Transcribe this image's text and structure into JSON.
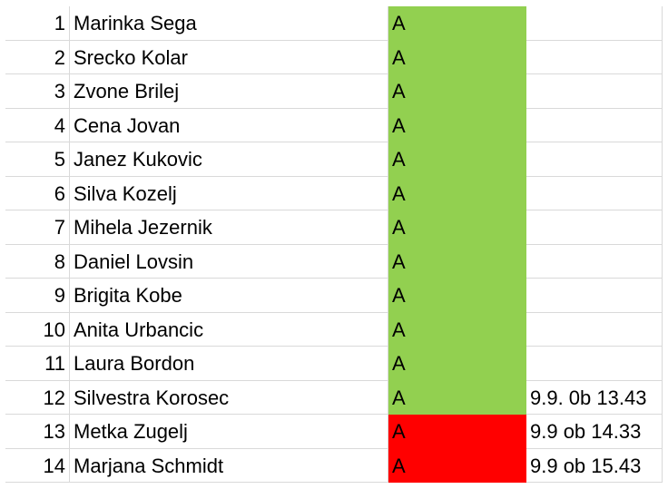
{
  "table": {
    "rows": [
      {
        "number": 1,
        "name": "Marinka Sega",
        "status": "A",
        "color": "#92d050"
      },
      {
        "number": 2,
        "name": "Srecko Kolar",
        "status": "A",
        "color": "#92d050"
      },
      {
        "number": 3,
        "name": "Zvone Brilej",
        "status": "A",
        "color": "#92d050"
      },
      {
        "number": 4,
        "name": "Cena Jovan",
        "status": "A",
        "color": "#92d050"
      },
      {
        "number": 5,
        "name": "Janez Kukovic",
        "status": "A",
        "color": "#92d050"
      },
      {
        "number": 6,
        "name": "Silva Kozelj",
        "status": "A",
        "color": "#92d050"
      },
      {
        "number": 7,
        "name": "Mihela Jezernik",
        "status": "A",
        "color": "#92d050"
      },
      {
        "number": 8,
        "name": "Daniel Lovsin",
        "status": "A",
        "color": "#92d050"
      },
      {
        "number": 9,
        "name": "Brigita Kobe",
        "status": "A",
        "color": "#92d050"
      },
      {
        "number": 10,
        "name": "Anita Urbancic",
        "status": "A",
        "color": "#92d050"
      },
      {
        "number": 11,
        "name": "Laura Bordon",
        "status": "A",
        "color": "#92d050"
      },
      {
        "number": 12,
        "name": "Silvestra Korosec",
        "status": "A",
        "color": "#92d050",
        "note": "9.9. 0b 13.43"
      },
      {
        "number": 13,
        "name": "Metka Zugelj",
        "status": "A",
        "color": "#ff0000",
        "note": "9.9 ob 14.33"
      },
      {
        "number": 14,
        "name": "Marjana Schmidt",
        "status": "A",
        "color": "#ff0000",
        "note": "9.9 ob 15.43"
      }
    ]
  }
}
